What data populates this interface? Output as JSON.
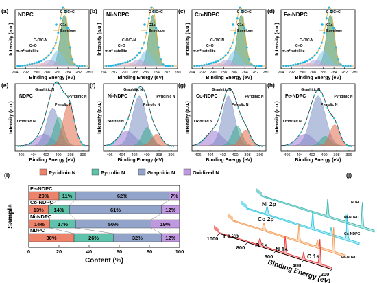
{
  "chart_data": [
    {
      "panel": "(a)",
      "type": "line",
      "title": "NDPC",
      "xlabel": "Binding Energy (eV)",
      "ylabel": "Intensity (a.u.)",
      "xlim": [
        294,
        280
      ],
      "x_ticks": [
        294,
        292,
        290,
        288,
        286,
        284,
        282,
        280
      ],
      "legend": [
        "C1s",
        "Envelope"
      ],
      "peak_labels": [
        "C-C/C=C",
        "C-O/C-N",
        "C=O",
        "π-π* satellite"
      ]
    },
    {
      "panel": "(b)",
      "type": "line",
      "title": "Ni-NDPC",
      "xlabel": "Binding Energy (eV)",
      "ylabel": "Intensity (a.u.)",
      "xlim": [
        294,
        280
      ],
      "x_ticks": [
        294,
        292,
        290,
        288,
        286,
        284,
        282,
        280
      ],
      "legend": [
        "C1s",
        "Envelope"
      ],
      "peak_labels": [
        "C-C/C=C",
        "C-O/C-N",
        "C=O",
        "π-π* satellite"
      ]
    },
    {
      "panel": "(c)",
      "type": "line",
      "title": "Co-NDPC",
      "xlabel": "Binding Energy (eV)",
      "ylabel": "Intensity (a.u.)",
      "xlim": [
        294,
        280
      ],
      "x_ticks": [
        294,
        292,
        290,
        288,
        286,
        284,
        282,
        280
      ],
      "legend": [
        "C1s",
        "Envelope"
      ],
      "peak_labels": [
        "C-C/C=C",
        "C-O/C-N",
        "C=O",
        "π-π* satellite"
      ]
    },
    {
      "panel": "(d)",
      "type": "line",
      "title": "Fe-NDPC",
      "xlabel": "Binding Energy (eV)",
      "ylabel": "Intensity (a.u.)",
      "xlim": [
        294,
        280
      ],
      "x_ticks": [
        294,
        292,
        290,
        288,
        286,
        284,
        282,
        280
      ],
      "legend": [
        "C1s",
        "Envelope"
      ],
      "peak_labels": [
        "C-C/C=C",
        "C-O/C-N",
        "C=O",
        "π-π* satellite"
      ]
    },
    {
      "panel": "(e)",
      "type": "line",
      "title": "NDPC",
      "xlabel": "Binding Energy (eV)",
      "ylabel": "Intensity (a.u.)",
      "xlim": [
        407,
        395
      ],
      "x_ticks": [
        406,
        404,
        402,
        400,
        398,
        396
      ],
      "peak_labels": [
        "Graphitic N",
        "Pyrrolic N",
        "Pyridinic N",
        "Oxidized N"
      ]
    },
    {
      "panel": "(f)",
      "type": "line",
      "title": "Ni-NDPC",
      "xlabel": "Binding Energy (eV)",
      "ylabel": "Intensity (a.u.)",
      "xlim": [
        407,
        395
      ],
      "x_ticks": [
        406,
        404,
        402,
        400,
        398,
        396
      ],
      "peak_labels": [
        "Graphitic N",
        "Pyrrolic N",
        "Pyridinic N",
        "Oxidized N"
      ]
    },
    {
      "panel": "(g)",
      "type": "line",
      "title": "Co-NDPC",
      "xlabel": "Binding Energy (eV)",
      "ylabel": "Intensity (a.u.)",
      "xlim": [
        407,
        395
      ],
      "x_ticks": [
        406,
        404,
        402,
        400,
        398,
        396
      ],
      "peak_labels": [
        "Graphitic N",
        "Pyrrolic N",
        "Pyridinic N",
        "Oxidized N"
      ]
    },
    {
      "panel": "(h)",
      "type": "line",
      "title": "Fe-NDPC",
      "xlabel": "Binding Energy (eV)",
      "ylabel": "Intensity (a.u.)",
      "xlim": [
        407,
        395
      ],
      "x_ticks": [
        406,
        404,
        402,
        400,
        398,
        396
      ],
      "peak_labels": [
        "Graphitic N",
        "Pyrrolic N",
        "Pyridinic N",
        "Oxidized N"
      ]
    },
    {
      "panel": "(i)",
      "type": "bar",
      "xlabel": "Content (%)",
      "ylabel": "Sample",
      "xlim": [
        0,
        100
      ],
      "x_ticks": [
        0,
        20,
        40,
        60,
        80,
        100
      ],
      "categories": [
        "Fe-NDPC",
        "Co-NDPC",
        "Ni-NDPC",
        "NDPC"
      ],
      "series": [
        {
          "name": "Pyridinic N",
          "color": "#e8593a",
          "values": [
            20,
            13,
            14,
            30
          ]
        },
        {
          "name": "Pyrrolic N",
          "color": "#2aae8e",
          "values": [
            11,
            14,
            17,
            26
          ]
        },
        {
          "name": "Graphitic N",
          "color": "#6f86b8",
          "values": [
            62,
            61,
            50,
            32
          ]
        },
        {
          "name": "Oxidized N",
          "color": "#a976d6",
          "values": [
            7,
            12,
            19,
            12
          ]
        }
      ],
      "labels": [
        [
          "20%",
          "11%",
          "62%",
          "7%"
        ],
        [
          "13%",
          "14%",
          "61%",
          "12%"
        ],
        [
          "14%",
          "17%",
          "50%",
          "19%"
        ],
        [
          "30%",
          "26%",
          "32%",
          "12%"
        ]
      ],
      "legend_position": "top"
    },
    {
      "panel": "(j)",
      "type": "line",
      "xlabel": "Binding Energy (eV)",
      "x_ticks": [
        1000,
        800,
        600,
        400,
        200
      ],
      "series_names": [
        "NDPC",
        "Ni-NDPC",
        "Co-NDPC",
        "Fe-NDPC"
      ],
      "peak_labels": [
        "Ni 2p",
        "Co 2p",
        "Fe 2p",
        "O 1s",
        "N 1s",
        "C 1s"
      ]
    }
  ]
}
